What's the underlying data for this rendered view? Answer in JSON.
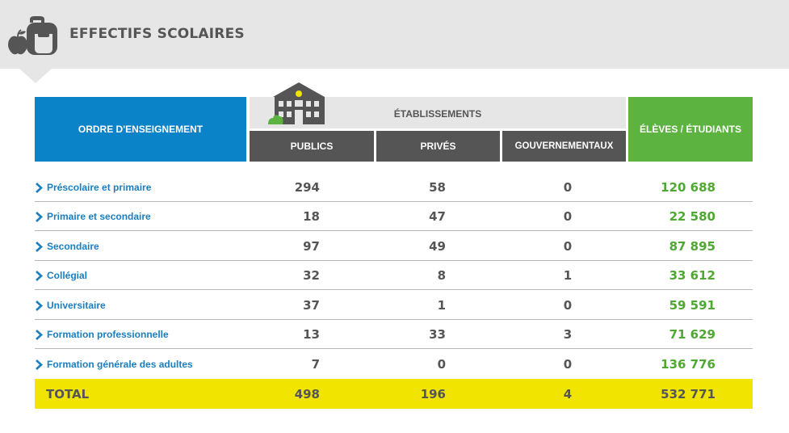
{
  "header": {
    "title": "EFFECTIFS SCOLAIRES",
    "icon": "backpack-apple-icon"
  },
  "table": {
    "columns": {
      "order": "ORDRE D'ENSEIGNEMENT",
      "establishments": "ÉTABLISSEMENTS",
      "public": "PUBLICS",
      "private": "PRIVÉS",
      "government": "GOUVERNEMENTAUX",
      "students": "ÉLÈVES / ÉTUDIANTS"
    },
    "rows": [
      {
        "label": "Préscolaire et primaire",
        "public": "294",
        "private": "58",
        "government": "0",
        "students": "120 688"
      },
      {
        "label": "Primaire et secondaire",
        "public": "18",
        "private": "47",
        "government": "0",
        "students": "22 580"
      },
      {
        "label": "Secondaire",
        "public": "97",
        "private": "49",
        "government": "0",
        "students": "87 895"
      },
      {
        "label": "Collégial",
        "public": "32",
        "private": "8",
        "government": "1",
        "students": "33 612"
      },
      {
        "label": "Universitaire",
        "public": "37",
        "private": "1",
        "government": "0",
        "students": "59 591"
      },
      {
        "label": "Formation professionnelle",
        "public": "13",
        "private": "33",
        "government": "3",
        "students": "71 629"
      },
      {
        "label": "Formation générale des adultes",
        "public": "7",
        "private": "0",
        "government": "0",
        "students": "136 776"
      }
    ],
    "total": {
      "label": "TOTAL",
      "public": "498",
      "private": "196",
      "government": "4",
      "students": "532 771"
    }
  },
  "colors": {
    "order_header": "#0b83c9",
    "students_header": "#5cb33f",
    "sub_header": "#555555",
    "total_row": "#f0e400",
    "label_text": "#1a7ec0",
    "students_text": "#4ea831"
  },
  "chart_data": {
    "type": "table",
    "title": "EFFECTIFS SCOLAIRES",
    "columns": [
      "ORDRE D'ENSEIGNEMENT",
      "PUBLICS",
      "PRIVÉS",
      "GOUVERNEMENTAUX",
      "ÉLÈVES / ÉTUDIANTS"
    ],
    "categories": [
      "Préscolaire et primaire",
      "Primaire et secondaire",
      "Secondaire",
      "Collégial",
      "Universitaire",
      "Formation professionnelle",
      "Formation générale des adultes"
    ],
    "series": [
      {
        "name": "PUBLICS",
        "values": [
          294,
          18,
          97,
          32,
          37,
          13,
          7
        ]
      },
      {
        "name": "PRIVÉS",
        "values": [
          58,
          47,
          49,
          8,
          1,
          33,
          0
        ]
      },
      {
        "name": "GOUVERNEMENTAUX",
        "values": [
          0,
          0,
          0,
          1,
          0,
          3,
          0
        ]
      },
      {
        "name": "ÉLÈVES / ÉTUDIANTS",
        "values": [
          120688,
          22580,
          87895,
          33612,
          59591,
          71629,
          136776
        ]
      }
    ],
    "totals": {
      "PUBLICS": 498,
      "PRIVÉS": 196,
      "GOUVERNEMENTAUX": 4,
      "ÉLÈVES / ÉTUDIANTS": 532771
    }
  }
}
